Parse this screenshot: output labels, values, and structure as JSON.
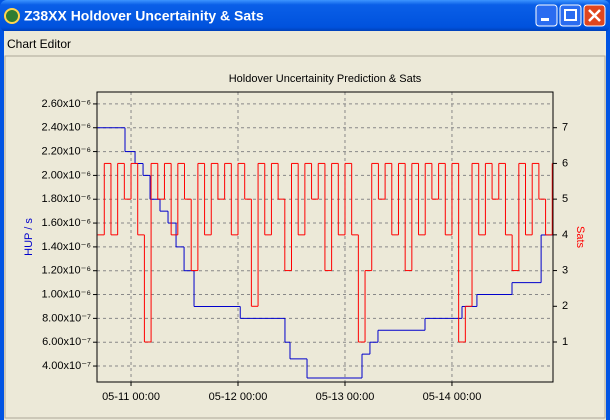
{
  "window": {
    "title": "Z38XX Holdover Uncertainity & Sats"
  },
  "menu": [
    "Chart Editor"
  ],
  "chart_data": {
    "type": "line",
    "drawstyle": "steps-post",
    "title": "Holdover Uncertainity Prediction & Sats",
    "ylabel": "HUP / s",
    "y2label": "Sats",
    "grid": true,
    "xlim": [
      "05-10 16:22",
      "05-14 22:40"
    ],
    "xticks": [
      "05-11 00:00",
      "05-12 00:00",
      "05-13 00:00",
      "05-14 00:00"
    ],
    "ylim": [
      2.66e-07,
      2.7e-06
    ],
    "yticks": [
      {
        "value": 4e-07,
        "label": "4.00x10⁻⁷"
      },
      {
        "value": 6e-07,
        "label": "6.00x10⁻⁷"
      },
      {
        "value": 8e-07,
        "label": "8.00x10⁻⁷"
      },
      {
        "value": 1e-06,
        "label": "1.00x10⁻⁶"
      },
      {
        "value": 1.2e-06,
        "label": "1.20x10⁻⁶"
      },
      {
        "value": 1.4e-06,
        "label": "1.40x10⁻⁶"
      },
      {
        "value": 1.6e-06,
        "label": "1.60x10⁻⁶"
      },
      {
        "value": 1.8e-06,
        "label": "1.80x10⁻⁶"
      },
      {
        "value": 2e-06,
        "label": "2.00x10⁻⁶"
      },
      {
        "value": 2.2e-06,
        "label": "2.20x10⁻⁶"
      },
      {
        "value": 2.4e-06,
        "label": "2.40x10⁻⁶"
      },
      {
        "value": 2.6e-06,
        "label": "2.60x10⁻⁶"
      }
    ],
    "y2lim": [
      -0.12,
      8.0
    ],
    "y2ticks": [
      1,
      2,
      3,
      4,
      5,
      6,
      7
    ],
    "series": [
      {
        "name": "HUP",
        "color": "#0000cc",
        "axis": "y",
        "x": [
          "05-10 16:22",
          "05-10 22:39",
          "05-11 00:54",
          "05-11 02:42",
          "05-11 04:16",
          "05-11 06:30",
          "05-11 08:18",
          "05-11 10:06",
          "05-11 11:54",
          "05-11 14:08",
          "05-12 00:30",
          "05-12 10:32",
          "05-12 11:40",
          "05-12 15:29",
          "05-13 03:49",
          "05-13 05:36",
          "05-13 07:24",
          "05-13 17:57",
          "05-14 02:15",
          "05-14 05:36",
          "05-14 13:28",
          "05-14 20:00"
        ],
        "values": [
          2.4e-06,
          2.2e-06,
          2.1e-06,
          2e-06,
          1.8e-06,
          1.7e-06,
          1.6e-06,
          1.4e-06,
          1.2e-06,
          9e-07,
          8e-07,
          6e-07,
          4.6e-07,
          3e-07,
          5e-07,
          6e-07,
          7e-07,
          8e-07,
          9e-07,
          1e-06,
          1.1e-06,
          1.5e-06
        ]
      },
      {
        "name": "Sats",
        "color": "#ff0000",
        "axis": "y2",
        "x": [
          "05-10 16:30",
          "05-10 18:00",
          "05-10 19:30",
          "05-10 21:00",
          "05-10 22:30",
          "05-11 00:00",
          "05-11 01:30",
          "05-11 03:00",
          "05-11 04:30",
          "05-11 06:00",
          "05-11 07:30",
          "05-11 09:00",
          "05-11 10:30",
          "05-11 12:00",
          "05-11 13:30",
          "05-11 15:00",
          "05-11 16:30",
          "05-11 18:00",
          "05-11 19:30",
          "05-11 21:00",
          "05-11 22:30",
          "05-12 00:00",
          "05-12 01:30",
          "05-12 03:00",
          "05-12 04:30",
          "05-12 06:00",
          "05-12 07:30",
          "05-12 09:00",
          "05-12 10:30",
          "05-12 12:00",
          "05-12 13:30",
          "05-12 15:00",
          "05-12 16:30",
          "05-12 18:00",
          "05-12 19:30",
          "05-12 21:00",
          "05-12 22:30",
          "05-13 00:00",
          "05-13 01:30",
          "05-13 03:00",
          "05-13 04:30",
          "05-13 06:00",
          "05-13 07:30",
          "05-13 09:00",
          "05-13 10:30",
          "05-13 12:00",
          "05-13 13:30",
          "05-13 15:00",
          "05-13 16:30",
          "05-13 18:00",
          "05-13 19:30",
          "05-13 21:00",
          "05-13 22:30",
          "05-14 00:00",
          "05-14 01:30",
          "05-14 03:00",
          "05-14 04:30",
          "05-14 06:00",
          "05-14 07:30",
          "05-14 09:00",
          "05-14 10:30",
          "05-14 12:00",
          "05-14 13:30",
          "05-14 15:00",
          "05-14 16:30",
          "05-14 18:00",
          "05-14 19:30",
          "05-14 21:00",
          "05-14 22:30"
        ],
        "values": [
          4,
          6,
          4,
          6,
          5,
          6,
          4,
          1,
          6,
          5,
          6,
          4,
          6,
          5,
          3,
          6,
          4,
          6,
          5,
          6,
          4,
          6,
          5,
          2,
          6,
          4,
          6,
          5,
          3,
          6,
          4,
          6,
          5,
          6,
          3,
          6,
          4,
          6,
          4,
          1,
          3,
          6,
          5,
          6,
          4,
          6,
          3,
          6,
          4,
          6,
          5,
          6,
          4,
          6,
          1,
          2,
          6,
          4,
          6,
          5,
          6,
          4,
          3,
          6,
          4,
          6,
          5,
          4,
          6
        ]
      }
    ]
  }
}
